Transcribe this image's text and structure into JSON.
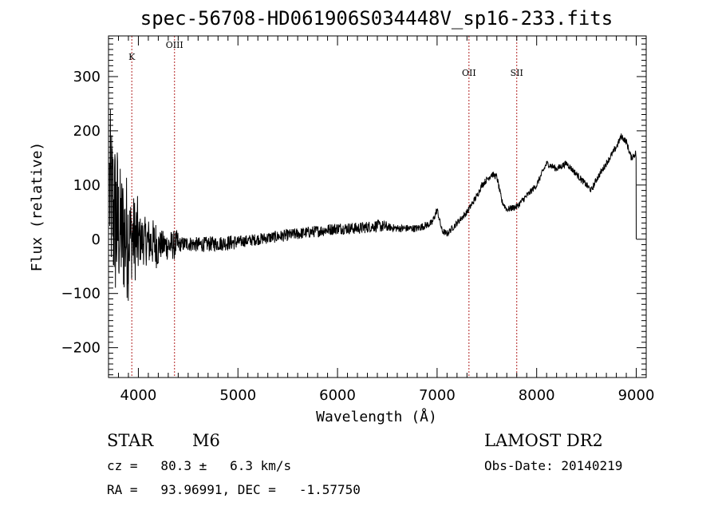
{
  "chart_data": {
    "type": "line",
    "title": "spec-56708-HD061906S034448V_sp16-233.fits",
    "xlabel": "Wavelength (Å)",
    "ylabel": "Flux (relative)",
    "xlim": [
      3700,
      9100
    ],
    "ylim": [
      -255,
      375
    ],
    "x_ticks": [
      4000,
      5000,
      6000,
      7000,
      8000,
      9000
    ],
    "x_tick_labels": [
      "4000",
      "5000",
      "6000",
      "7000",
      "8000",
      "9000"
    ],
    "y_ticks": [
      -200,
      -100,
      0,
      100,
      200,
      300
    ],
    "y_tick_labels": [
      "−200",
      "−100",
      "0",
      "100",
      "200",
      "300"
    ],
    "spectral_lines": [
      {
        "label": "K",
        "wavelength": 3934
      },
      {
        "label": "OIII",
        "wavelength": 4363
      },
      {
        "label": "OII",
        "wavelength": 7320
      },
      {
        "label": "SII",
        "wavelength": 7800
      }
    ],
    "series": [
      {
        "x": [
          3710,
          3760,
          3800,
          3850,
          3900,
          3950,
          4000,
          4100,
          4200,
          4300,
          4400,
          4500,
          4600,
          4800,
          5000,
          5200,
          5400,
          5600,
          5800,
          6000,
          6200,
          6400,
          6600,
          6800,
          6950,
          7000,
          7050,
          7100,
          7150,
          7200,
          7300,
          7400,
          7450,
          7500,
          7550,
          7600,
          7650,
          7700,
          7800,
          7900,
          8000,
          8100,
          8200,
          8300,
          8400,
          8500,
          8550,
          8600,
          8700,
          8800,
          8850,
          8900,
          8950,
          9000
        ],
        "y": [
          90,
          40,
          20,
          10,
          5,
          3,
          0,
          -5,
          -10,
          -12,
          -10,
          -8,
          -10,
          -8,
          -5,
          0,
          5,
          10,
          15,
          20,
          20,
          25,
          20,
          20,
          30,
          55,
          15,
          10,
          20,
          30,
          50,
          80,
          100,
          110,
          120,
          115,
          70,
          55,
          60,
          80,
          100,
          140,
          130,
          140,
          120,
          100,
          90,
          110,
          140,
          170,
          190,
          180,
          150,
          160
        ]
      }
    ]
  },
  "info": {
    "object_class": "STAR",
    "subclass": "M6",
    "survey": "LAMOST DR2",
    "redshift": "cz =   80.3 ±   6.3 km/s",
    "obs_date": "Obs-Date: 20140219",
    "coords": "RA =   93.96991, DEC =   -1.57750"
  }
}
